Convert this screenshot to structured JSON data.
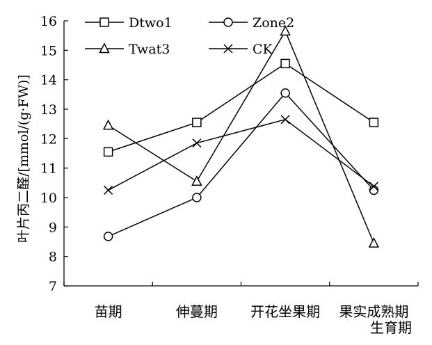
{
  "chart_data": {
    "type": "line",
    "title": "",
    "xlabel": "生育期",
    "ylabel": "叶片丙二醛/[mmol/(g·FW)]",
    "categories": [
      "苗期",
      "伸蔓期",
      "开花坐果期",
      "果实成熟期"
    ],
    "ylim": [
      7,
      16
    ],
    "yticks": [
      7,
      8,
      9,
      10,
      11,
      12,
      13,
      14,
      15,
      16
    ],
    "grid": false,
    "legend_position": "top-left",
    "series": [
      {
        "name": "Dtwo1",
        "marker": "square",
        "values": [
          11.55,
          12.55,
          14.55,
          12.55
        ]
      },
      {
        "name": "Zone2",
        "marker": "circle",
        "values": [
          8.68,
          10.0,
          13.55,
          10.25
        ]
      },
      {
        "name": "Twat3",
        "marker": "triangle",
        "values": [
          12.45,
          10.55,
          15.65,
          8.45
        ]
      },
      {
        "name": "CK",
        "marker": "x",
        "values": [
          10.25,
          11.85,
          12.65,
          10.38
        ]
      }
    ]
  }
}
